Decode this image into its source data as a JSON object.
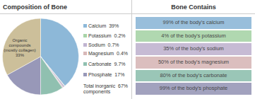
{
  "chart_data": {
    "type": "pie",
    "title": "Composition of Bone",
    "categories": [
      "Calcium  39%",
      "Potassium  0.2%",
      "Sodium  0.7%",
      "Magnesium  0.4%",
      "Carbonate  9.7%",
      "Phosphate  17%",
      "Organic\ncompounds\n(mostly collagen)\n33%"
    ],
    "values": [
      39,
      0.2,
      0.7,
      0.4,
      9.7,
      17,
      33
    ],
    "colors": [
      "#8db8d8",
      "#a8d4a8",
      "#c0b4d0",
      "#d8b8b8",
      "#90c0b0",
      "#9898b8",
      "#ccbf9a"
    ],
    "annotations": [
      "Total inorganic  67%\ncomponents",
      "Bone Contains",
      "99% of the body's calcium",
      "4% of the body's potassium",
      "35% of the body's sodium",
      "50% of the body's magnesium",
      "80% of the body's carbonate",
      "99% of the body's phosphate"
    ]
  }
}
